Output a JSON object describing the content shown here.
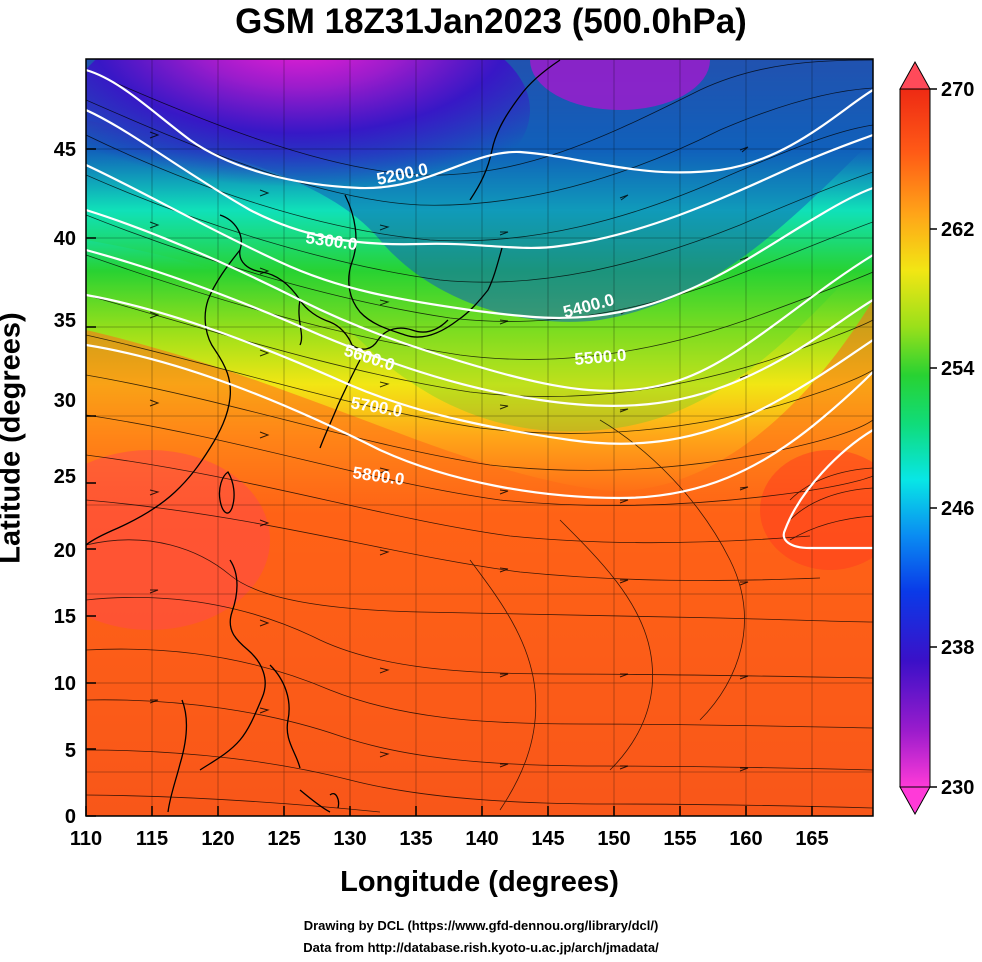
{
  "title": "GSM 18Z31Jan2023 (500.0hPa)",
  "xlabel": "Longitude (degrees)",
  "ylabel": "Latitude  (degrees)",
  "credits": [
    "Drawing by DCL (https://www.gfd-dennou.org/library/dcl/)",
    "Data from http://database.rish.kyoto-u.ac.jp/arch/jmadata/"
  ],
  "map": {
    "lon_range": [
      110,
      170
    ],
    "lat_range": [
      0,
      50
    ],
    "lon_ticks": [
      "110",
      "115",
      "120",
      "125",
      "130",
      "135",
      "140",
      "145",
      "150",
      "155",
      "160",
      "165"
    ],
    "lat_ticks": [
      "0",
      "5",
      "10",
      "15",
      "20",
      "25",
      "30",
      "35",
      "40",
      "45"
    ]
  },
  "colorbar": {
    "min": 230,
    "max": 270,
    "ticks": [
      "270",
      "262",
      "254",
      "246",
      "238",
      "230"
    ],
    "colors": [
      "#ff3ad8",
      "#9b1ccc",
      "#3b10c8",
      "#0a3ae8",
      "#0a8cf2",
      "#08e6e6",
      "#10dc7a",
      "#28d232",
      "#9be01a",
      "#f2e614",
      "#ffa518",
      "#ff5a16",
      "#ee2a14"
    ]
  },
  "contours": [
    {
      "label": "5200.0"
    },
    {
      "label": "5300.0"
    },
    {
      "label": "5400.0"
    },
    {
      "label": "5500.0"
    },
    {
      "label": "5600.0"
    },
    {
      "label": "5700.0"
    },
    {
      "label": "5800.0"
    }
  ]
}
